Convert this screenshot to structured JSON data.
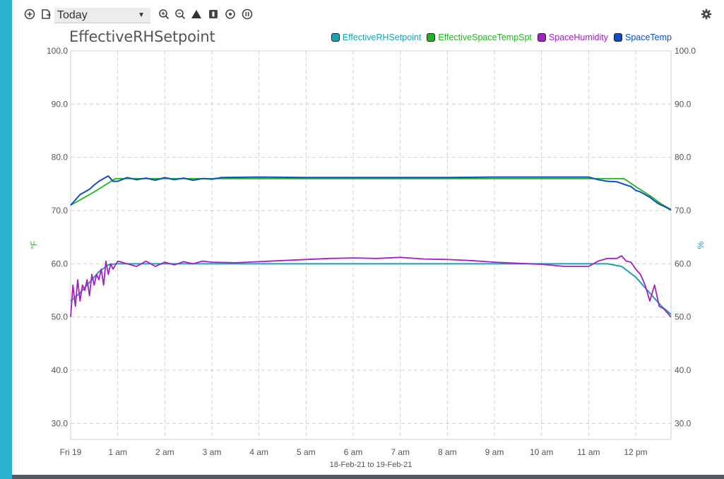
{
  "toolbar": {
    "range_value": "Today",
    "icons": [
      "add-icon",
      "export-icon",
      "zoom-in-icon",
      "zoom-out-icon",
      "delta-icon",
      "marker-icon",
      "target-icon",
      "pause-icon",
      "settings-gear-icon"
    ]
  },
  "colors": {
    "background": "#2bb3cf",
    "EffectiveRHSetpoint": "#1aa3b3",
    "EffectiveSpaceTempSpt": "#22b422",
    "SpaceHumidity": "#a51fc6",
    "SpaceTemp": "#0d4fc2",
    "left_axis_label": "#3ca83c",
    "right_axis_label": "#1aa3b3"
  },
  "chart_data": {
    "type": "line",
    "title": "EffectiveRHSetpoint",
    "legend_position": "top-right",
    "grid": true,
    "x_ticks": [
      "Fri 19",
      "1 am",
      "2 am",
      "3 am",
      "4 am",
      "5 am",
      "6 am",
      "7 am",
      "8 am",
      "9 am",
      "10 am",
      "11 am",
      "12 pm"
    ],
    "x_range_hours": [
      0,
      12.75
    ],
    "date_range": "18-Feb-21 to 19-Feb-21",
    "y_ticks_left": [
      "100.0",
      "90.0",
      "80.0",
      "70.0",
      "60.0",
      "50.0",
      "40.0",
      "30.0"
    ],
    "y_ticks_right": [
      "100.0",
      "90.0",
      "80.0",
      "70.0",
      "60.0",
      "50.0",
      "40.0",
      "30.0"
    ],
    "ylim": [
      27,
      100
    ],
    "ylabel_left": "°F",
    "ylabel_right": "%",
    "series": [
      {
        "name": "EffectiveRHSetpoint",
        "axis": "right",
        "x": [
          0,
          0.2,
          0.4,
          0.6,
          0.8,
          0.95,
          1.5,
          3,
          6,
          9,
          11,
          11.4,
          11.7,
          12.0,
          12.3,
          12.55,
          12.75
        ],
        "y": [
          53,
          54.5,
          56.5,
          58.5,
          59.8,
          60,
          60,
          60,
          60,
          60,
          60,
          60,
          59.5,
          57.5,
          54.5,
          52,
          50.5
        ]
      },
      {
        "name": "EffectiveSpaceTempSpt",
        "axis": "left",
        "x": [
          0,
          0.5,
          0.95,
          1.5,
          3,
          6,
          9,
          11,
          11.75,
          12.0,
          12.3,
          12.55,
          12.75
        ],
        "y": [
          71,
          73.5,
          76,
          76,
          76,
          76,
          76,
          76,
          76,
          74.5,
          72.8,
          71.2,
          70.2
        ]
      },
      {
        "name": "SpaceHumidity",
        "axis": "right",
        "x": [
          0,
          0.05,
          0.1,
          0.15,
          0.2,
          0.25,
          0.3,
          0.35,
          0.4,
          0.45,
          0.5,
          0.55,
          0.6,
          0.65,
          0.7,
          0.75,
          0.8,
          0.85,
          0.9,
          1.0,
          1.2,
          1.4,
          1.6,
          1.8,
          2.0,
          2.2,
          2.4,
          2.6,
          2.8,
          3.0,
          3.5,
          4.0,
          4.5,
          5.0,
          5.5,
          6.0,
          6.5,
          7.0,
          7.5,
          8.0,
          8.5,
          9.0,
          9.5,
          10.0,
          10.5,
          11.0,
          11.2,
          11.4,
          11.6,
          11.7,
          11.8,
          11.9,
          12.0,
          12.1,
          12.2,
          12.3,
          12.4,
          12.5,
          12.6,
          12.7,
          12.75
        ],
        "y": [
          50,
          56,
          52,
          57,
          53,
          56,
          55,
          57,
          54,
          58,
          56,
          58,
          57,
          59,
          56,
          60.5,
          58,
          60,
          59,
          60.5,
          60,
          59.5,
          60.5,
          59.5,
          60.3,
          59.8,
          60.4,
          60,
          60.5,
          60.3,
          60.2,
          60.4,
          60.6,
          60.8,
          61,
          61.1,
          61,
          61.2,
          60.9,
          60.8,
          60.6,
          60.3,
          60.1,
          59.9,
          59.5,
          59.5,
          60.5,
          61,
          61,
          61.5,
          60.5,
          60.3,
          59,
          58,
          56,
          53,
          56,
          52,
          51.5,
          50.5,
          50
        ]
      },
      {
        "name": "SpaceTemp",
        "axis": "left",
        "x": [
          0,
          0.1,
          0.2,
          0.3,
          0.4,
          0.5,
          0.6,
          0.7,
          0.8,
          0.9,
          1.0,
          1.2,
          1.4,
          1.6,
          1.8,
          2.0,
          2.2,
          2.4,
          2.6,
          2.8,
          3.0,
          3.2,
          4,
          5,
          6,
          7,
          8,
          9,
          10,
          11,
          11.2,
          11.4,
          11.6,
          11.8,
          11.9,
          12.0,
          12.1,
          12.2,
          12.3,
          12.4,
          12.5,
          12.6,
          12.75
        ],
        "y": [
          71,
          72,
          73,
          73.5,
          74,
          74.8,
          75.5,
          76,
          76.5,
          75.5,
          75.5,
          76.2,
          75.8,
          76.1,
          75.7,
          76.2,
          75.8,
          76.1,
          75.7,
          76,
          75.9,
          76.2,
          76.3,
          76.2,
          76.2,
          76.2,
          76.2,
          76.3,
          76.3,
          76.3,
          75.8,
          75.5,
          75.4,
          74.8,
          74.5,
          73.8,
          73.5,
          73,
          72.5,
          71.8,
          71.2,
          70.8,
          70.1
        ]
      }
    ]
  }
}
